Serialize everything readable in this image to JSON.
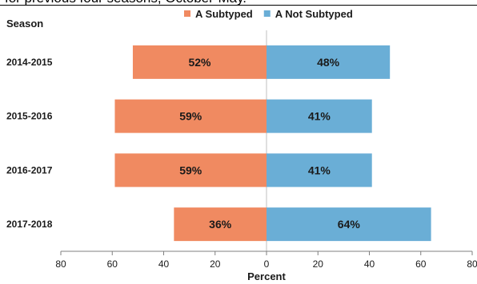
{
  "caption": "for previous four seasons, October-May.",
  "chart_data": {
    "type": "bar",
    "orientation": "horizontal-diverging",
    "category_header": "Season",
    "categories": [
      "2014-2015",
      "2015-2016",
      "2016-2017",
      "2017-2018"
    ],
    "series": [
      {
        "name": "A Subtyped",
        "direction": "left",
        "color": "#f08a61",
        "values": [
          52,
          59,
          59,
          36
        ],
        "labels": [
          "52%",
          "59%",
          "59%",
          "36%"
        ]
      },
      {
        "name": "A Not Subtyped",
        "direction": "right",
        "color": "#6aaed6",
        "values": [
          48,
          41,
          41,
          64
        ],
        "labels": [
          "48%",
          "41%",
          "41%",
          "64%"
        ]
      }
    ],
    "xlabel": "Percent",
    "xlim": [
      -80,
      80
    ],
    "xticks": [
      "80",
      "60",
      "40",
      "20",
      "0",
      "20",
      "40",
      "60",
      "80"
    ],
    "legend_position": "top-center",
    "grid": false
  }
}
